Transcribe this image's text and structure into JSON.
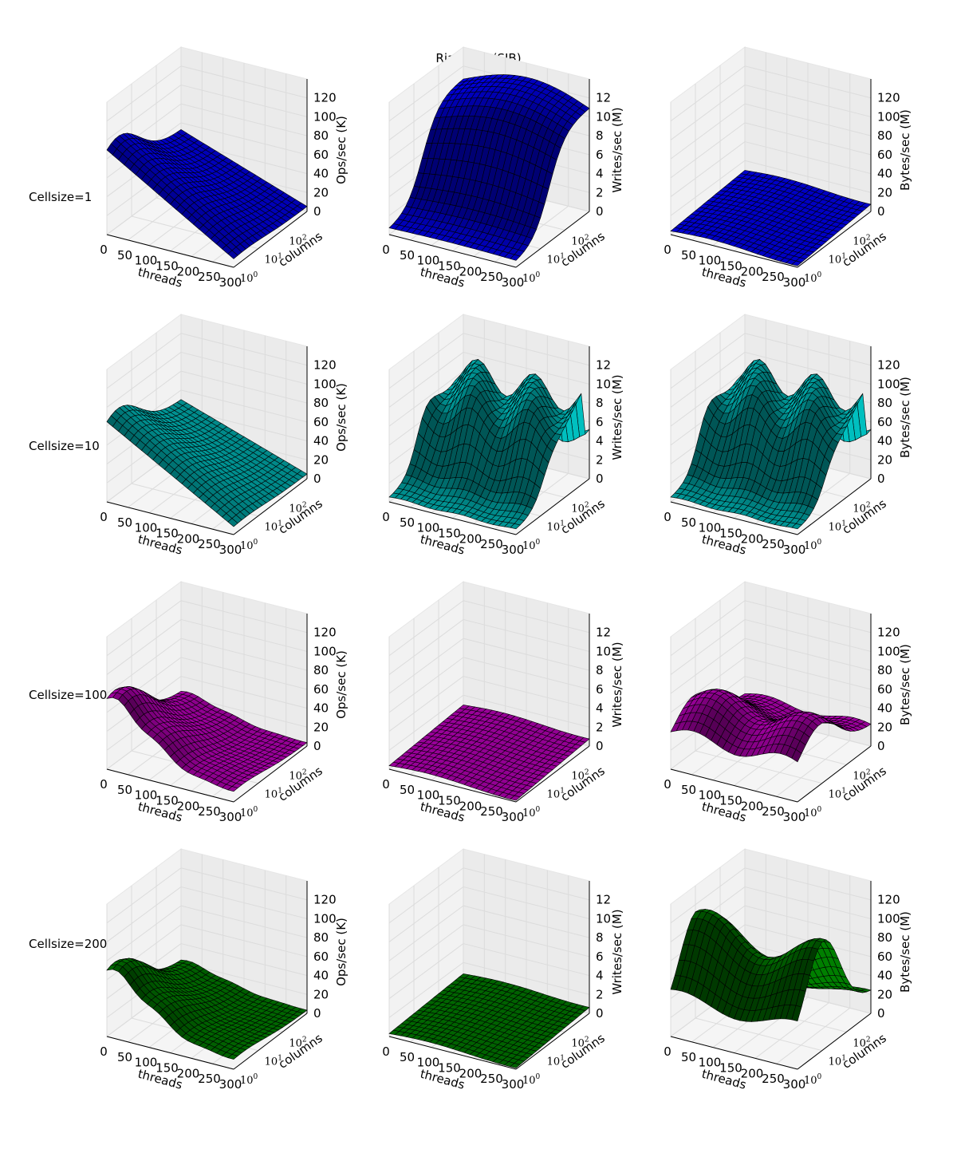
{
  "chart_data": {
    "type": "surface3d",
    "title": "Riak PUT (SJB)",
    "x_axis": {
      "label": "threads",
      "ticks": [
        "0",
        "50",
        "100",
        "150",
        "200",
        "250",
        "300"
      ],
      "range": [
        0,
        300
      ]
    },
    "y_axis": {
      "label": "columns",
      "scale": "log",
      "ticks": [
        "10^0",
        "10^1",
        "10^2"
      ],
      "range": [
        1,
        1000
      ]
    },
    "columns": [
      {
        "zlabel": "Ops/sec (K)",
        "zticks": [
          "0",
          "20",
          "40",
          "60",
          "80",
          "100",
          "120"
        ],
        "zrange": [
          0,
          140
        ]
      },
      {
        "zlabel": "Writes/sec (M)",
        "zticks": [
          "0",
          "2",
          "4",
          "6",
          "8",
          "10",
          "12"
        ],
        "zrange": [
          0,
          14
        ]
      },
      {
        "zlabel": "Bytes/sec (M)",
        "zticks": [
          "0",
          "20",
          "40",
          "60",
          "80",
          "100",
          "120"
        ],
        "zrange": [
          0,
          140
        ]
      }
    ],
    "rows": [
      {
        "label": "Cellsize=1",
        "color": "#0000ff",
        "shade": "#00009a",
        "panels": [
          {
            "peak_z": 95,
            "shape": "ops_decline"
          },
          {
            "peak_z": 12.5,
            "shape": "rise_plateau"
          },
          {
            "peak_z": 12,
            "shape": "flat_low"
          }
        ]
      },
      {
        "label": "Cellsize=10",
        "color": "#00bfbf",
        "shade": "#007474",
        "panels": [
          {
            "peak_z": 90,
            "shape": "ops_decline"
          },
          {
            "peak_z": 10.5,
            "shape": "ridge_wavy"
          },
          {
            "peak_z": 105,
            "shape": "ridge_wavy"
          }
        ]
      },
      {
        "label": "Cellsize=100",
        "color": "#bf00bf",
        "shade": "#740074",
        "panels": [
          {
            "peak_z": 80,
            "shape": "ops_steep"
          },
          {
            "peak_z": 1.2,
            "shape": "flat_low"
          },
          {
            "peak_z": 70,
            "shape": "ridge_mid"
          }
        ]
      },
      {
        "label": "Cellsize=200",
        "color": "#007f00",
        "shade": "#004800",
        "panels": [
          {
            "peak_z": 75,
            "shape": "ops_steep"
          },
          {
            "peak_z": 1.0,
            "shape": "flat_low"
          },
          {
            "peak_z": 115,
            "shape": "ridge_high"
          }
        ]
      }
    ]
  }
}
